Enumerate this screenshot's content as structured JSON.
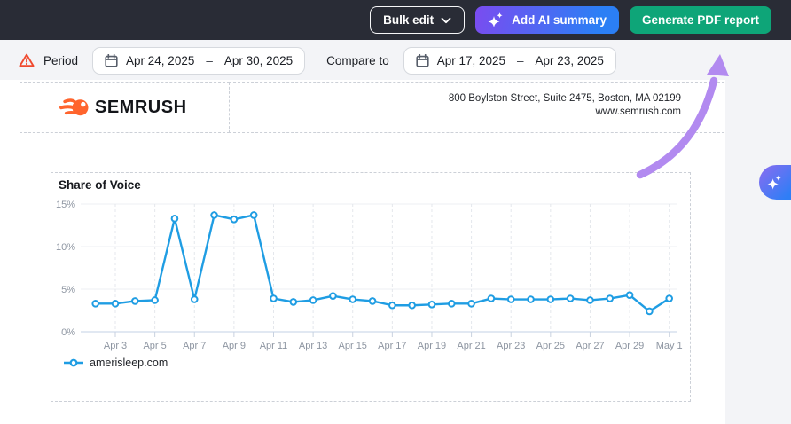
{
  "topbar": {
    "bulk_edit_label": "Bulk edit",
    "add_ai_summary_label": "Add AI summary",
    "generate_pdf_label": "Generate PDF report"
  },
  "filters": {
    "period_label": "Period",
    "period_start": "Apr 24, 2025",
    "period_separator": "–",
    "period_end": "Apr 30, 2025",
    "compare_label": "Compare to",
    "compare_start": "Apr 17, 2025",
    "compare_separator": "–",
    "compare_end": "Apr 23, 2025"
  },
  "report_header": {
    "logo_text": "SEMRUSH",
    "address_line1": "800 Boylston Street, Suite 2475, Boston, MA 02199",
    "address_line2": "www.semrush.com"
  },
  "chart_data": {
    "type": "line",
    "title": "Share of Voice",
    "x": [
      "Apr 2",
      "Apr 3",
      "Apr 4",
      "Apr 5",
      "Apr 6",
      "Apr 7",
      "Apr 8",
      "Apr 9",
      "Apr 10",
      "Apr 11",
      "Apr 12",
      "Apr 13",
      "Apr 14",
      "Apr 15",
      "Apr 16",
      "Apr 17",
      "Apr 18",
      "Apr 19",
      "Apr 20",
      "Apr 21",
      "Apr 22",
      "Apr 23",
      "Apr 24",
      "Apr 25",
      "Apr 26",
      "Apr 27",
      "Apr 28",
      "Apr 29",
      "Apr 30",
      "May 1"
    ],
    "series": [
      {
        "name": "amerisleep.com",
        "values": [
          3.3,
          3.3,
          3.6,
          3.7,
          13.3,
          3.8,
          13.7,
          13.2,
          13.7,
          3.9,
          3.5,
          3.7,
          4.2,
          3.8,
          3.6,
          3.1,
          3.1,
          3.2,
          3.3,
          3.3,
          3.9,
          3.8,
          3.8,
          3.8,
          3.9,
          3.7,
          3.9,
          4.3,
          2.4,
          3.9
        ]
      }
    ],
    "ylim": [
      0,
      15
    ],
    "ytick_values": [
      0,
      5,
      10,
      15
    ],
    "ytick_labels": [
      "0%",
      "5%",
      "10%",
      "15%"
    ],
    "xtick_start_index": 1,
    "xtick_every": 2,
    "grid": true,
    "legend_position": "bottom-left",
    "line_color": "#1f9de3"
  },
  "icons": {
    "period_warning": "warning-triangle",
    "date_range": "calendar",
    "bulk_edit_caret": "chevron-down",
    "ai_summary": "sparkles",
    "floating_ai": "sparkles",
    "legend_marker": "line-with-dot"
  },
  "colors": {
    "topbar_bg": "#292c36",
    "generate_pdf_bg": "#0ea578",
    "ai_gradient_start": "#7a4cf0",
    "ai_gradient_end": "#2b7ff5",
    "warning": "#f04a2f",
    "logo_orange": "#ff642d",
    "chart_line": "#1f9de3",
    "arrow": "#b28af0",
    "page_bg": "#f3f4f7"
  }
}
